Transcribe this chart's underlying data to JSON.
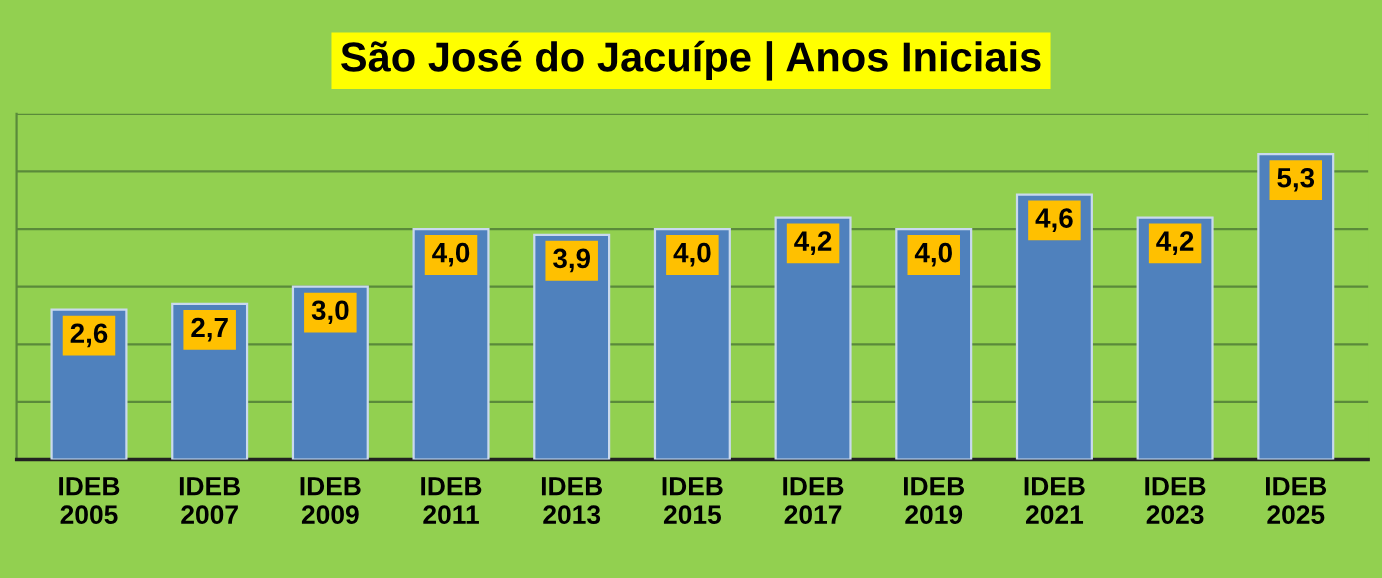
{
  "chart_data": {
    "type": "bar",
    "title": "São José do Jacuípe | Anos Iniciais",
    "categories": [
      "IDEB\n2005",
      "IDEB\n2007",
      "IDEB\n2009",
      "IDEB\n2011",
      "IDEB\n2013",
      "IDEB\n2015",
      "IDEB\n2017",
      "IDEB\n2019",
      "IDEB\n2021",
      "IDEB\n2023",
      "IDEB\n2025"
    ],
    "values": [
      2.6,
      2.7,
      3.0,
      4.0,
      3.9,
      4.0,
      4.2,
      4.0,
      4.6,
      4.2,
      5.3
    ],
    "value_labels": [
      "2,6",
      "2,7",
      "3,0",
      "4,0",
      "3,9",
      "4,0",
      "4,2",
      "4,0",
      "4,6",
      "4,2",
      "5,3"
    ],
    "color": "#4f81bd",
    "ylim": [
      0,
      6
    ],
    "yticks": [
      {
        "value": 0,
        "label": null
      },
      {
        "value": 1,
        "label": null
      },
      {
        "value": 2,
        "label": null
      },
      {
        "value": 3,
        "label": null
      },
      {
        "value": 4,
        "label": null
      },
      {
        "value": 5,
        "label": null
      },
      {
        "value": 6,
        "label": null
      }
    ],
    "grid": "y",
    "tick_labels": "x"
  }
}
